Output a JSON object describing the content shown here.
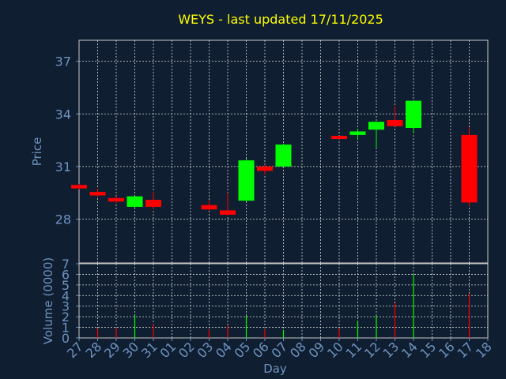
{
  "chart_data": {
    "type": "candlestick",
    "title": "WEYS - last updated 17/11/2025",
    "xlabel": "Day",
    "ylabel_price": "Price",
    "ylabel_volume": "Volume (0000)",
    "x_tick_labels": [
      "27",
      "28",
      "29",
      "30",
      "31",
      "01",
      "02",
      "03",
      "04",
      "05",
      "06",
      "07",
      "08",
      "09",
      "10",
      "11",
      "12",
      "13",
      "14",
      "15",
      "16",
      "17",
      "18"
    ],
    "price_ticks": [
      28,
      31,
      34,
      37
    ],
    "price_ylim": [
      25.5,
      38.2
    ],
    "volume_ticks": [
      0,
      1,
      2,
      3,
      4,
      5,
      6,
      7
    ],
    "volume_ylim": [
      0,
      7
    ],
    "grid": true,
    "colors": {
      "up": "#00ff00",
      "down": "#ff0000",
      "background": "#0f1e30",
      "title": "#ffff00",
      "axis": "#6f93c0"
    },
    "candles": [
      {
        "day": "27",
        "open": 29.95,
        "high": 30.0,
        "low": 29.7,
        "close": 29.75,
        "volume": 0.0
      },
      {
        "day": "28",
        "open": 29.55,
        "high": 29.75,
        "low": 29.3,
        "close": 29.35,
        "volume": 0.9
      },
      {
        "day": "29",
        "open": 29.2,
        "high": 29.3,
        "low": 28.9,
        "close": 29.0,
        "volume": 0.95
      },
      {
        "day": "30",
        "open": 28.7,
        "high": 29.3,
        "low": 28.6,
        "close": 29.3,
        "volume": 2.2
      },
      {
        "day": "31",
        "open": 29.1,
        "high": 29.55,
        "low": 28.55,
        "close": 28.7,
        "volume": 1.3
      },
      {
        "day": "03",
        "open": 28.8,
        "high": 29.1,
        "low": 28.5,
        "close": 28.55,
        "volume": 0.8
      },
      {
        "day": "04",
        "open": 28.5,
        "high": 29.5,
        "low": 28.2,
        "close": 28.25,
        "volume": 1.2
      },
      {
        "day": "05",
        "open": 29.05,
        "high": 31.45,
        "low": 29.0,
        "close": 31.35,
        "volume": 2.1
      },
      {
        "day": "06",
        "open": 31.0,
        "high": 31.1,
        "low": 30.55,
        "close": 30.75,
        "volume": 0.8
      },
      {
        "day": "07",
        "open": 31.0,
        "high": 32.3,
        "low": 30.95,
        "close": 32.25,
        "volume": 0.75
      },
      {
        "day": "10",
        "open": 32.75,
        "high": 32.75,
        "low": 32.55,
        "close": 32.65,
        "volume": 0.9
      },
      {
        "day": "11",
        "open": 32.8,
        "high": 33.15,
        "low": 32.55,
        "close": 33.0,
        "volume": 1.6
      },
      {
        "day": "12",
        "open": 33.1,
        "high": 33.55,
        "low": 32.1,
        "close": 33.55,
        "volume": 2.1
      },
      {
        "day": "13",
        "open": 33.65,
        "high": 34.45,
        "low": 33.3,
        "close": 33.3,
        "volume": 3.3
      },
      {
        "day": "14",
        "open": 33.2,
        "high": 34.75,
        "low": 32.9,
        "close": 34.75,
        "volume": 6.0
      },
      {
        "day": "17",
        "open": 32.8,
        "high": 33.25,
        "low": 28.75,
        "close": 28.95,
        "volume": 4.2
      }
    ]
  }
}
